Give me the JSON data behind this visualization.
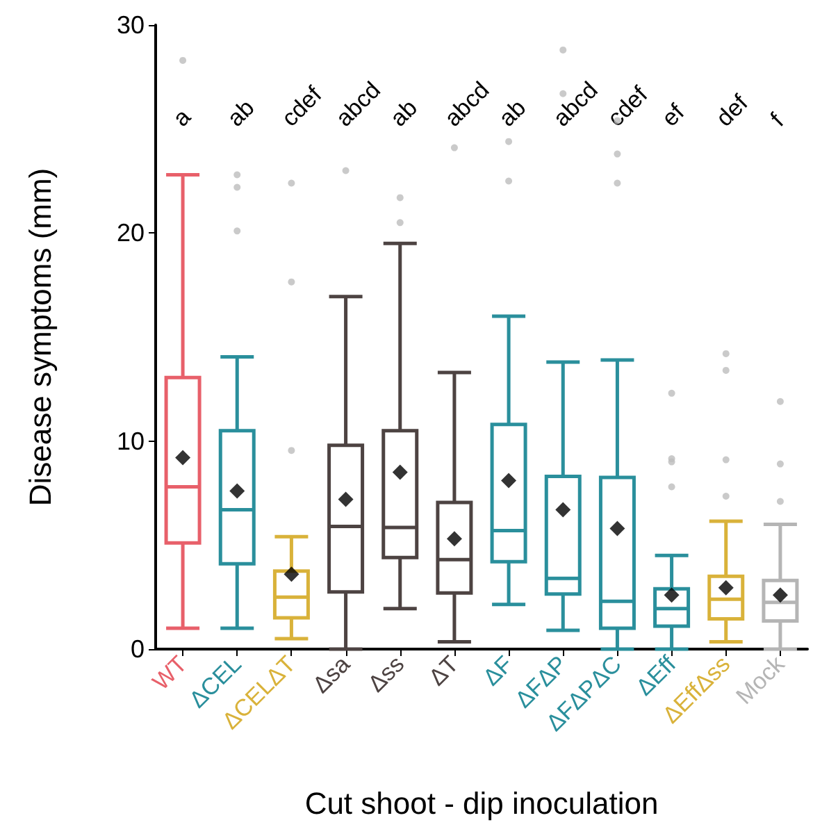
{
  "chart_data": {
    "type": "box",
    "xlabel": "Cut shoot - dip inoculation",
    "ylabel": "Disease symptoms (mm)",
    "categories": [
      "WT",
      "ΔCEL",
      "ΔCELΔT",
      "Δsa",
      "Δss",
      "ΔT",
      "ΔF",
      "ΔFΔP",
      "ΔFΔPΔC",
      "ΔEff",
      "ΔEffΔss",
      "Mock"
    ],
    "ylim": [
      0,
      30
    ],
    "yticks": [
      0,
      10,
      20,
      30
    ],
    "grid": false,
    "marker": "diamond",
    "colors": [
      "#e8606a",
      "#2a8f9c",
      "#d9b23a",
      "#4d4342",
      "#4d4342",
      "#4d4342",
      "#2a8f9c",
      "#2a8f9c",
      "#2a8f9c",
      "#2a8f9c",
      "#d9b23a",
      "#b5b5b5"
    ],
    "boxes": [
      {
        "low": 1.0,
        "q1": 5.1,
        "median": 7.8,
        "q3": 13.05,
        "high": 22.8,
        "mean": 9.2,
        "outliers": [
          28.3
        ]
      },
      {
        "low": 1.0,
        "q1": 4.1,
        "median": 6.7,
        "q3": 10.5,
        "high": 14.05,
        "mean": 7.6,
        "outliers": [
          22.8,
          22.2,
          20.1
        ]
      },
      {
        "low": 0.5,
        "q1": 1.5,
        "median": 2.5,
        "q3": 3.75,
        "high": 5.4,
        "mean": 3.6,
        "outliers": [
          22.4,
          17.65,
          9.55
        ]
      },
      {
        "low": 0,
        "q1": 2.75,
        "median": 5.9,
        "q3": 9.8,
        "high": 16.95,
        "mean": 7.2,
        "outliers": [
          23.0
        ]
      },
      {
        "low": 1.95,
        "q1": 4.4,
        "median": 5.85,
        "q3": 10.5,
        "high": 19.5,
        "mean": 8.5,
        "outliers": [
          21.7,
          20.5
        ]
      },
      {
        "low": 0.35,
        "q1": 2.7,
        "median": 4.3,
        "q3": 7.05,
        "high": 13.3,
        "mean": 5.3,
        "outliers": [
          24.1
        ]
      },
      {
        "low": 2.15,
        "q1": 4.2,
        "median": 5.7,
        "q3": 10.8,
        "high": 16.0,
        "mean": 8.1,
        "outliers": [
          24.4,
          22.5
        ]
      },
      {
        "low": 0.9,
        "q1": 2.65,
        "median": 3.4,
        "q3": 8.3,
        "high": 13.8,
        "mean": 6.7,
        "outliers": [
          28.8,
          26.7
        ]
      },
      {
        "low": 0,
        "q1": 1.0,
        "median": 2.3,
        "q3": 8.25,
        "high": 13.9,
        "mean": 5.8,
        "outliers": [
          25.4,
          23.8,
          22.4
        ]
      },
      {
        "low": 0,
        "q1": 1.1,
        "median": 1.95,
        "q3": 2.9,
        "high": 4.5,
        "mean": 2.6,
        "outliers": [
          12.3,
          9.15,
          9.0,
          7.8
        ]
      },
      {
        "low": 0.35,
        "q1": 1.45,
        "median": 2.4,
        "q3": 3.5,
        "high": 6.15,
        "mean": 2.95,
        "outliers": [
          14.2,
          13.4,
          9.1,
          7.35
        ]
      },
      {
        "low": 0,
        "q1": 1.35,
        "median": 2.25,
        "q3": 3.3,
        "high": 6.0,
        "mean": 2.6,
        "outliers": [
          11.9,
          8.9,
          7.1
        ]
      }
    ],
    "annotations": [
      "a",
      "ab",
      "cdef",
      "abcd",
      "ab",
      "abcd",
      "ab",
      "abcd",
      "cdef",
      "ef",
      "def",
      "f"
    ]
  }
}
